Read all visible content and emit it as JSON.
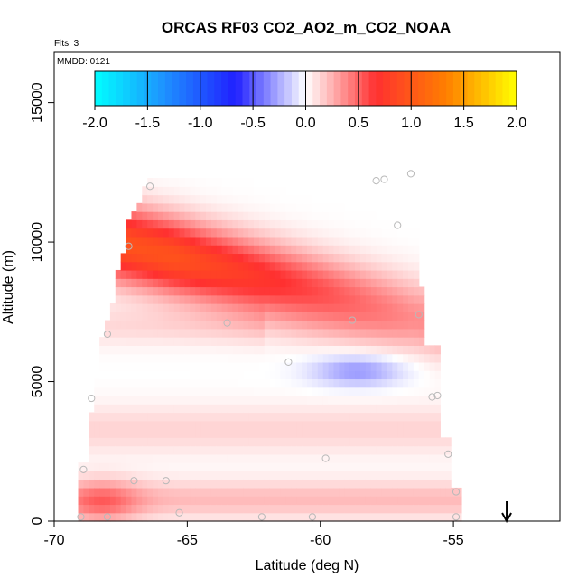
{
  "chart_data": {
    "type": "heatmap",
    "title": "ORCAS RF03 CO2_AO2_m_CO2_NOAA",
    "flights_note": "Flts: 3",
    "date_note": "MMDD: 0121",
    "xlabel": "Latitude (deg N)",
    "ylabel": "Altitude (m)",
    "xlim": [
      -70,
      -51
    ],
    "ylim": [
      0,
      16800
    ],
    "x_ticks": [
      -70,
      -65,
      -60,
      -55
    ],
    "x_tick_labels": [
      "-70",
      "-65",
      "-60",
      "-55"
    ],
    "y_ticks": [
      0,
      5000,
      10000,
      15000
    ],
    "y_tick_labels": [
      "0",
      "5000",
      "10000",
      "15000"
    ],
    "colorbar": {
      "min": -2.0,
      "max": 2.0,
      "ticks": [
        "-2.0",
        "-1.5",
        "-1.0",
        "-0.5",
        "0.0",
        "0.5",
        "1.0",
        "1.5",
        "2.0"
      ],
      "colors": [
        "#00ffff",
        "#1e90ff",
        "#2020ff",
        "#ffffff",
        "#ff3030",
        "#ff7f00",
        "#ffff00"
      ]
    },
    "arrow_latitude": -53,
    "field_features": [
      {
        "feature": "upper positive maximum",
        "lat": -65.5,
        "alt": 9600,
        "value": 0.9
      },
      {
        "feature": "negative minimum",
        "lat": -58.5,
        "alt": 5400,
        "value": -0.3
      },
      {
        "feature": "boundary layer positive",
        "lat": -68,
        "alt": 800,
        "value": 0.5
      }
    ],
    "sample_points": [
      {
        "lat": -66.4,
        "alt": 12000
      },
      {
        "lat": -67.2,
        "alt": 9850
      },
      {
        "lat": -68.0,
        "alt": 6700
      },
      {
        "lat": -68.6,
        "alt": 4400
      },
      {
        "lat": -68.9,
        "alt": 1850
      },
      {
        "lat": -67.0,
        "alt": 1450
      },
      {
        "lat": -65.8,
        "alt": 1450
      },
      {
        "lat": -63.5,
        "alt": 7100
      },
      {
        "lat": -61.2,
        "alt": 5700
      },
      {
        "lat": -59.8,
        "alt": 2250
      },
      {
        "lat": -57.9,
        "alt": 12200
      },
      {
        "lat": -57.6,
        "alt": 12250
      },
      {
        "lat": -56.6,
        "alt": 12450
      },
      {
        "lat": -57.1,
        "alt": 10600
      },
      {
        "lat": -56.3,
        "alt": 7400
      },
      {
        "lat": -55.8,
        "alt": 4450
      },
      {
        "lat": -55.6,
        "alt": 4500
      },
      {
        "lat": -55.2,
        "alt": 2400
      },
      {
        "lat": -54.9,
        "alt": 1050
      },
      {
        "lat": -54.9,
        "alt": 150
      },
      {
        "lat": -60.3,
        "alt": 150
      },
      {
        "lat": -62.2,
        "alt": 150
      },
      {
        "lat": -65.3,
        "alt": 300
      },
      {
        "lat": -68.0,
        "alt": 150
      },
      {
        "lat": -69.0,
        "alt": 150
      },
      {
        "lat": -58.8,
        "alt": 7200
      }
    ]
  }
}
